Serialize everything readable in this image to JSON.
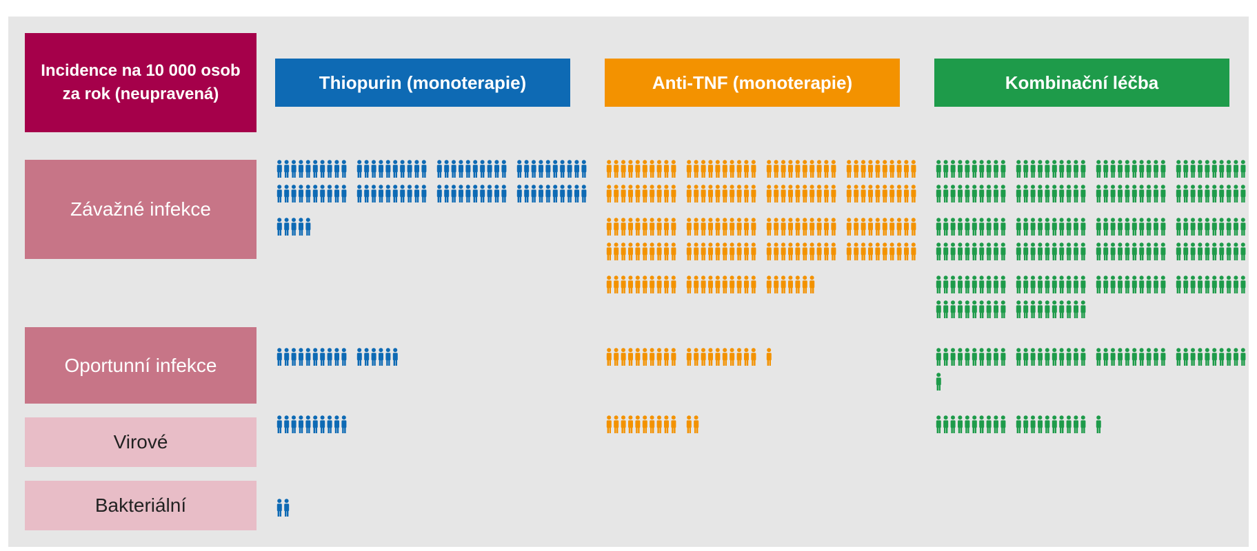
{
  "header": {
    "line1": "Incidence na 10 000 osob",
    "line2": "za rok (neupravená)",
    "color": "#a5004a"
  },
  "chart_data": {
    "type": "pictogram",
    "groups": [
      {
        "name": "Thiopurin (monoterapie)",
        "color": "#0e6ab4"
      },
      {
        "name": "Anti-TNF (monoterapie)",
        "color": "#f39200"
      },
      {
        "name": "Kombinační léčba",
        "color": "#1e9b4a"
      }
    ],
    "categories": [
      "Závažné infekce",
      "Oportunní infekce",
      "Virové",
      "Bakteriální"
    ],
    "values": [
      [
        85,
        187,
        220
      ],
      [
        16,
        21,
        41
      ],
      [
        10,
        12,
        21
      ],
      [
        2,
        0,
        0
      ]
    ]
  },
  "colors": {
    "panel": "#e6e6e6",
    "row_main": "#c77587",
    "row_sub": "#e8bdc7"
  }
}
